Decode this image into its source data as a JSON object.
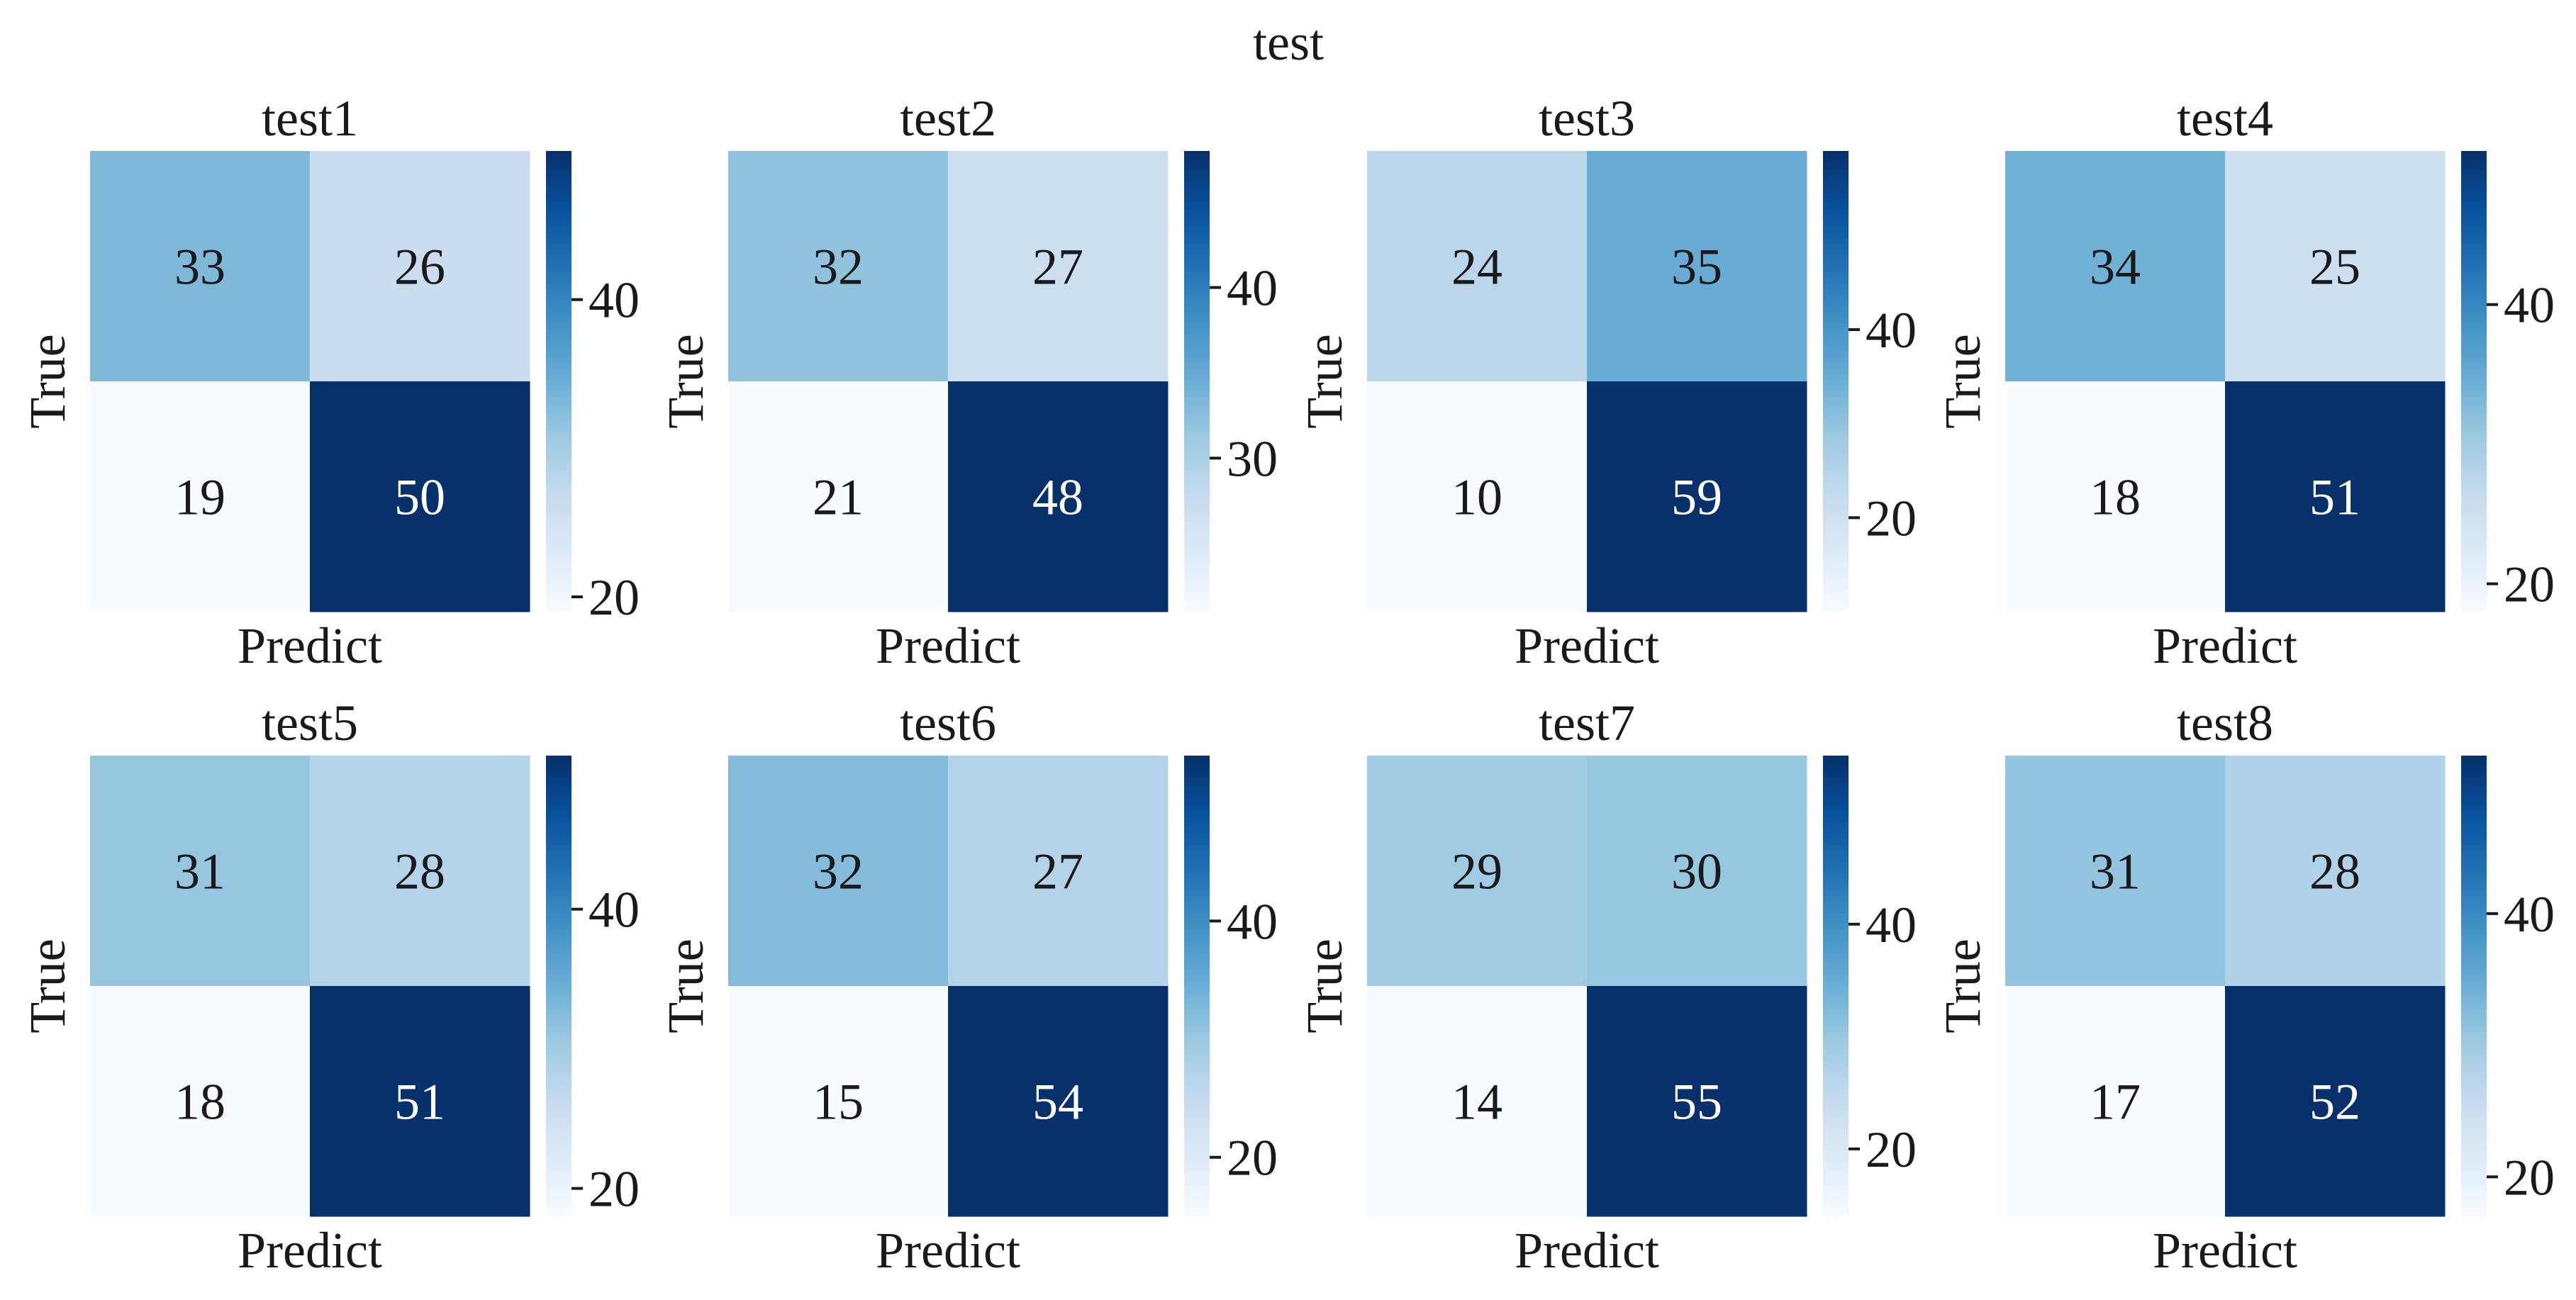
{
  "chart_data": {
    "type": "heatmap",
    "title": "test",
    "colormap": "Blues",
    "panels": [
      {
        "title": "test1",
        "xlabel": "Predict",
        "ylabel": "True",
        "matrix": [
          [
            33,
            26
          ],
          [
            19,
            50
          ]
        ],
        "colorbar": {
          "min": 19,
          "max": 50,
          "ticks": [
            20,
            40
          ]
        }
      },
      {
        "title": "test2",
        "xlabel": "Predict",
        "ylabel": "True",
        "matrix": [
          [
            32,
            27
          ],
          [
            21,
            48
          ]
        ],
        "colorbar": {
          "min": 21,
          "max": 48,
          "ticks": [
            30,
            40
          ]
        }
      },
      {
        "title": "test3",
        "xlabel": "Predict",
        "ylabel": "True",
        "matrix": [
          [
            24,
            35
          ],
          [
            10,
            59
          ]
        ],
        "colorbar": {
          "min": 10,
          "max": 59,
          "ticks": [
            20,
            40
          ]
        }
      },
      {
        "title": "test4",
        "xlabel": "Predict",
        "ylabel": "True",
        "matrix": [
          [
            34,
            25
          ],
          [
            18,
            51
          ]
        ],
        "colorbar": {
          "min": 18,
          "max": 51,
          "ticks": [
            20,
            40
          ]
        }
      },
      {
        "title": "test5",
        "xlabel": "Predict",
        "ylabel": "True",
        "matrix": [
          [
            31,
            28
          ],
          [
            18,
            51
          ]
        ],
        "colorbar": {
          "min": 18,
          "max": 51,
          "ticks": [
            20,
            40
          ]
        }
      },
      {
        "title": "test6",
        "xlabel": "Predict",
        "ylabel": "True",
        "matrix": [
          [
            32,
            27
          ],
          [
            15,
            54
          ]
        ],
        "colorbar": {
          "min": 15,
          "max": 54,
          "ticks": [
            20,
            40
          ]
        }
      },
      {
        "title": "test7",
        "xlabel": "Predict",
        "ylabel": "True",
        "matrix": [
          [
            29,
            30
          ],
          [
            14,
            55
          ]
        ],
        "colorbar": {
          "min": 14,
          "max": 55,
          "ticks": [
            20,
            40
          ]
        }
      },
      {
        "title": "test8",
        "xlabel": "Predict",
        "ylabel": "True",
        "matrix": [
          [
            31,
            28
          ],
          [
            17,
            52
          ]
        ],
        "colorbar": {
          "min": 17,
          "max": 52,
          "ticks": [
            20,
            40
          ]
        }
      }
    ]
  }
}
